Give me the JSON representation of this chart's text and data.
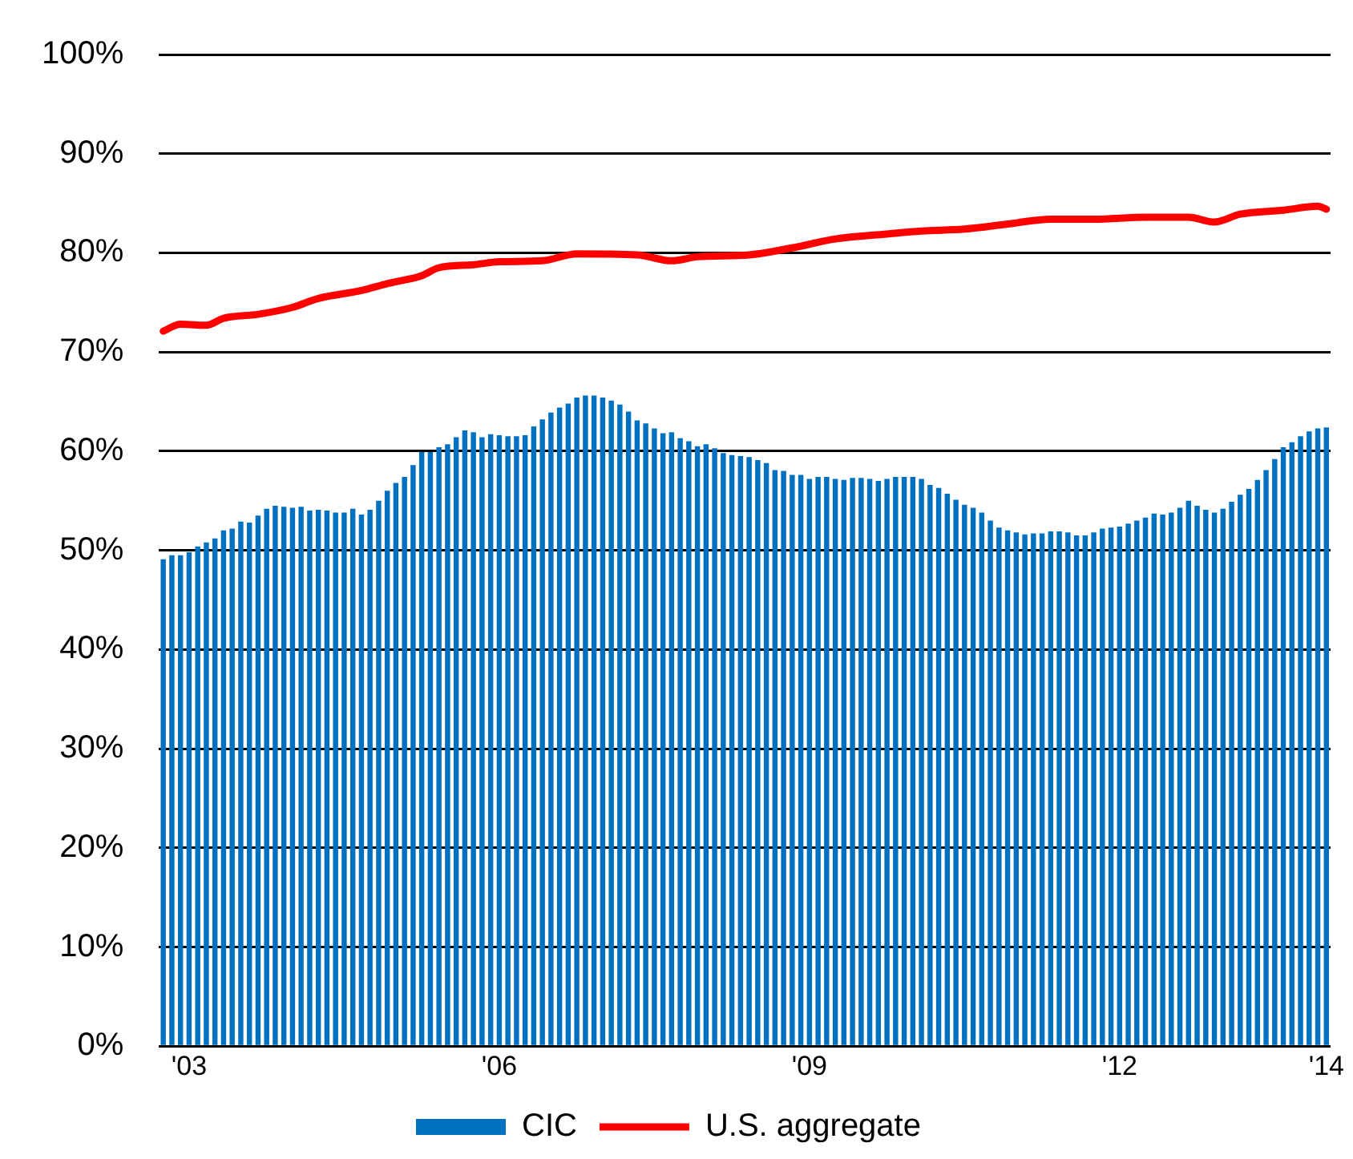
{
  "chart_data": {
    "type": "bar",
    "x": [
      "2002-10",
      "2002-11",
      "2002-12",
      "2003-01",
      "2003-02",
      "2003-03",
      "2003-04",
      "2003-05",
      "2003-06",
      "2003-07",
      "2003-08",
      "2003-09",
      "2003-10",
      "2003-11",
      "2003-12",
      "2004-01",
      "2004-02",
      "2004-03",
      "2004-04",
      "2004-05",
      "2004-06",
      "2004-07",
      "2004-08",
      "2004-09",
      "2004-10",
      "2004-11",
      "2004-12",
      "2005-01",
      "2005-02",
      "2005-03",
      "2005-04",
      "2005-05",
      "2005-06",
      "2005-07",
      "2005-08",
      "2005-09",
      "2005-10",
      "2005-11",
      "2005-12",
      "2006-01",
      "2006-02",
      "2006-03",
      "2006-04",
      "2006-05",
      "2006-06",
      "2006-07",
      "2006-08",
      "2006-09",
      "2006-10",
      "2006-11",
      "2006-12",
      "2007-01",
      "2007-02",
      "2007-03",
      "2007-04",
      "2007-05",
      "2007-06",
      "2007-07",
      "2007-08",
      "2007-09",
      "2007-10",
      "2007-11",
      "2007-12",
      "2008-01",
      "2008-02",
      "2008-03",
      "2008-04",
      "2008-05",
      "2008-06",
      "2008-07",
      "2008-08",
      "2008-09",
      "2008-10",
      "2008-11",
      "2008-12",
      "2009-01",
      "2009-02",
      "2009-03",
      "2009-04",
      "2009-05",
      "2009-06",
      "2009-07",
      "2009-08",
      "2009-09",
      "2009-10",
      "2009-11",
      "2009-12",
      "2010-01",
      "2010-02",
      "2010-03",
      "2010-04",
      "2010-05",
      "2010-06",
      "2010-07",
      "2010-08",
      "2010-09",
      "2010-10",
      "2010-11",
      "2010-12",
      "2011-01",
      "2011-02",
      "2011-03",
      "2011-04",
      "2011-05",
      "2011-06",
      "2011-07",
      "2011-08",
      "2011-09",
      "2011-10",
      "2011-11",
      "2011-12",
      "2012-01",
      "2012-02",
      "2012-03",
      "2012-04",
      "2012-05",
      "2012-06",
      "2012-07",
      "2012-08",
      "2012-09",
      "2012-10",
      "2012-11",
      "2012-12",
      "2013-01",
      "2013-02",
      "2013-03",
      "2013-04",
      "2013-05",
      "2013-06",
      "2013-07",
      "2013-08",
      "2013-09",
      "2013-10",
      "2013-11",
      "2013-12",
      "2014-01"
    ],
    "series": [
      {
        "name": "CIC",
        "color": "#0070c0",
        "values": [
          49.1,
          49.5,
          49.5,
          49.8,
          50.4,
          50.8,
          51.2,
          52.0,
          52.2,
          52.9,
          52.8,
          53.5,
          54.2,
          54.5,
          54.4,
          54.3,
          54.4,
          54.0,
          54.1,
          54.0,
          53.8,
          53.8,
          54.2,
          53.6,
          54.1,
          55.0,
          56.0,
          56.8,
          57.4,
          58.6,
          59.9,
          59.9,
          60.4,
          60.7,
          61.4,
          62.1,
          61.9,
          61.4,
          61.7,
          61.6,
          61.5,
          61.5,
          61.6,
          62.5,
          63.2,
          63.9,
          64.4,
          64.8,
          65.4,
          65.6,
          65.6,
          65.4,
          65.1,
          64.7,
          64.0,
          63.1,
          62.8,
          62.3,
          61.8,
          61.9,
          61.3,
          61.0,
          60.5,
          60.7,
          60.3,
          59.8,
          59.6,
          59.5,
          59.4,
          59.1,
          58.8,
          58.1,
          58.0,
          57.6,
          57.6,
          57.2,
          57.4,
          57.4,
          57.2,
          57.1,
          57.3,
          57.3,
          57.2,
          57.0,
          57.2,
          57.4,
          57.4,
          57.4,
          57.2,
          56.6,
          56.3,
          55.7,
          55.1,
          54.6,
          54.3,
          53.8,
          53.0,
          52.3,
          52.0,
          51.8,
          51.6,
          51.7,
          51.7,
          51.9,
          51.9,
          51.8,
          51.5,
          51.5,
          51.8,
          52.2,
          52.3,
          52.4,
          52.7,
          53.0,
          53.3,
          53.7,
          53.6,
          53.8,
          54.3,
          55.0,
          54.5,
          54.1,
          53.8,
          54.2,
          54.9,
          55.6,
          56.2,
          57.1,
          58.1,
          59.2,
          60.4,
          60.9,
          61.5,
          62.0,
          62.3,
          62.4
        ]
      },
      {
        "name": "U.S. aggregate",
        "type": "line",
        "color": "#ff0000",
        "x": [
          "2002-10",
          "2002-12",
          "2003-03",
          "2003-05",
          "2003-09",
          "2004-01",
          "2004-04",
          "2004-09",
          "2004-12",
          "2005-04",
          "2005-06",
          "2005-10",
          "2006-01",
          "2006-06",
          "2006-10",
          "2007-05",
          "2007-09",
          "2007-12",
          "2008-06",
          "2008-11",
          "2009-04",
          "2009-10",
          "2010-02",
          "2010-07",
          "2010-12",
          "2011-05",
          "2011-10",
          "2012-04",
          "2012-09",
          "2012-12",
          "2013-03",
          "2013-08",
          "2013-12",
          "2014-01"
        ],
        "values": [
          72.1,
          72.8,
          72.7,
          73.4,
          73.8,
          74.5,
          75.4,
          76.2,
          76.9,
          77.7,
          78.5,
          78.8,
          79.1,
          79.2,
          79.9,
          79.8,
          79.2,
          79.6,
          79.8,
          80.5,
          81.4,
          81.9,
          82.2,
          82.4,
          82.9,
          83.4,
          83.4,
          83.6,
          83.6,
          83.1,
          83.9,
          84.3,
          84.7,
          84.4
        ]
      }
    ],
    "xlim": [
      "2002-09-16",
      "2014-01-16"
    ],
    "xticks": [
      {
        "value": "2003-01",
        "label": "'03"
      },
      {
        "value": "2006-01",
        "label": "'06"
      },
      {
        "value": "2009-01",
        "label": "'09"
      },
      {
        "value": "2012-01",
        "label": "'12"
      },
      {
        "value": "2014-01",
        "label": "'14"
      }
    ],
    "ylim": [
      0,
      100
    ],
    "yticks": [
      {
        "value": 0,
        "label": "0%"
      },
      {
        "value": 10,
        "label": "10%"
      },
      {
        "value": 20,
        "label": "20%"
      },
      {
        "value": 30,
        "label": "30%"
      },
      {
        "value": 40,
        "label": "40%"
      },
      {
        "value": 50,
        "label": "50%"
      },
      {
        "value": 60,
        "label": "60%"
      },
      {
        "value": 70,
        "label": "70%"
      },
      {
        "value": 80,
        "label": "80%"
      },
      {
        "value": 90,
        "label": "90%"
      },
      {
        "value": 100,
        "label": "100%"
      }
    ],
    "grid": "y",
    "legend": "bottom",
    "marker": "none"
  }
}
